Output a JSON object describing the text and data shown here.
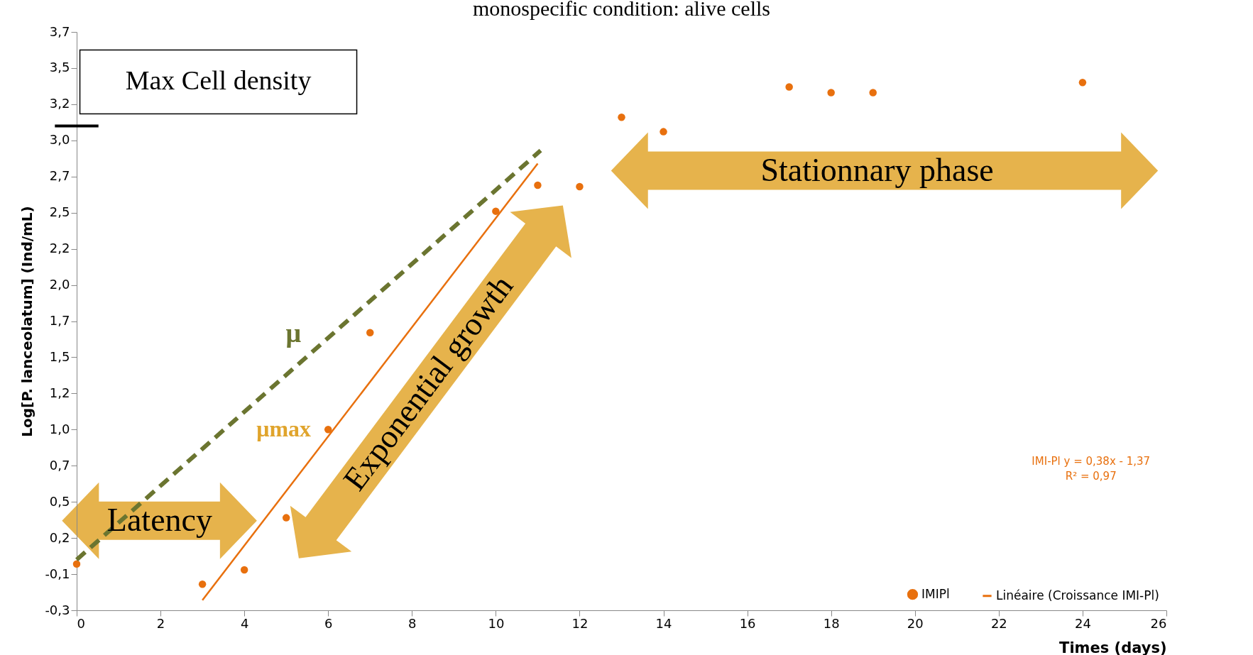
{
  "chart_data": {
    "type": "scatter",
    "title": "monospecific condition: alive cells",
    "xlabel": "Times (days)",
    "ylabel": "Log[P. lanceolatum] (Ind/mL)",
    "x": [
      0,
      3,
      4,
      5,
      6,
      7,
      10,
      11,
      12,
      13,
      14,
      17,
      18,
      19,
      24
    ],
    "series": [
      {
        "name": "IMIPl",
        "marker": "circle",
        "color": "#e8700e",
        "values": [
          0.02,
          -0.12,
          -0.02,
          0.34,
          0.95,
          1.62,
          2.46,
          2.64,
          2.63,
          3.11,
          3.01,
          3.32,
          3.28,
          3.28,
          3.35
        ]
      },
      {
        "name": "Linéaire (Croissance IMI-Pl)",
        "type": "line",
        "color": "#e8700e",
        "x": [
          3,
          11
        ],
        "values": [
          -0.23,
          2.79
        ]
      },
      {
        "type": "line",
        "color": "#6b7530",
        "line_style": "dashed",
        "x": [
          0,
          11.07
        ],
        "values": [
          0.05,
          2.88
        ]
      }
    ],
    "xlim": [
      0,
      26
    ],
    "xticks": [
      0,
      2,
      4,
      6,
      8,
      10,
      12,
      14,
      16,
      18,
      20,
      22,
      24,
      26
    ],
    "ylim": [
      -0.3,
      3.7
    ],
    "yticks": [
      {
        "value": -0.3,
        "label": "-0,3"
      },
      {
        "value": -0.05,
        "label": "-0,1"
      },
      {
        "value": 0.2,
        "label": "0,2"
      },
      {
        "value": 0.45,
        "label": "0,5"
      },
      {
        "value": 0.7,
        "label": "0,7"
      },
      {
        "value": 0.95,
        "label": "1,0"
      },
      {
        "value": 1.2,
        "label": "1,2"
      },
      {
        "value": 1.45,
        "label": "1,5"
      },
      {
        "value": 1.7,
        "label": "1,7"
      },
      {
        "value": 1.95,
        "label": "2,0"
      },
      {
        "value": 2.2,
        "label": "2,2"
      },
      {
        "value": 2.45,
        "label": "2,5"
      },
      {
        "value": 2.7,
        "label": "2,7"
      },
      {
        "value": 2.95,
        "label": "3,0"
      },
      {
        "value": 3.2,
        "label": "3,2"
      },
      {
        "value": 3.45,
        "label": "3,5"
      },
      {
        "value": 3.7,
        "label": "3,7"
      }
    ],
    "ref_lines": [
      {
        "axis": "y",
        "value": 3.05,
        "label": "Max Cell density",
        "color": "#000000"
      }
    ],
    "annotations": [
      "Latency",
      "Exponential growth",
      "Stationnary phase",
      "μ",
      "μmax",
      "IMI-Pl y = 0,38x - 1,37",
      "R² = 0,97"
    ],
    "legend": "bottom right",
    "grid": false
  }
}
